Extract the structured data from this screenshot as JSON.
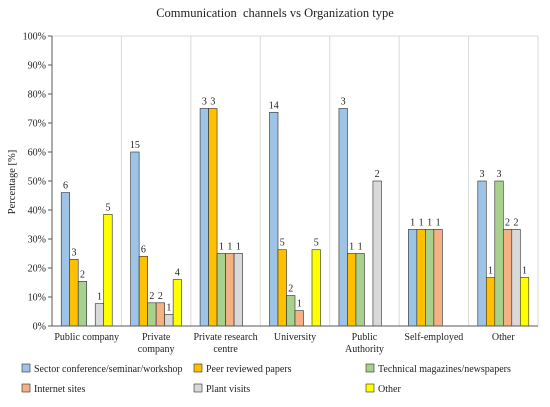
{
  "chart_data": {
    "type": "bar",
    "title": "Communication  channels vs Organization type",
    "ylabel": "Percentage [%]",
    "xlabel": "",
    "ylim": [
      0,
      100
    ],
    "y_ticks": [
      0,
      10,
      20,
      30,
      40,
      50,
      60,
      70,
      80,
      90,
      100
    ],
    "y_tick_suffix": "%",
    "grid": "vertical-separators",
    "legend_position": "bottom",
    "categories": [
      [
        "Public company"
      ],
      [
        "Private",
        "company"
      ],
      [
        "Private research",
        "centre"
      ],
      [
        "University"
      ],
      [
        "Public",
        "Authority"
      ],
      [
        "Self-employed"
      ],
      [
        "Other"
      ]
    ],
    "series": [
      {
        "name": "Sector conference/seminar/workshop",
        "color": "#9dc3e6",
        "values": [
          46,
          60,
          75,
          73.7,
          75,
          33.3,
          50
        ],
        "labels": [
          "6",
          "15",
          "3",
          "14",
          "3",
          "1",
          "3"
        ]
      },
      {
        "name": "Peer reviewed papers",
        "color": "#ffc000",
        "values": [
          23,
          24,
          75,
          26.3,
          25,
          33.3,
          16.7
        ],
        "labels": [
          "3",
          "6",
          "3",
          "5",
          "1",
          "1",
          "1"
        ]
      },
      {
        "name": "Technical magazines/newspapers",
        "color": "#a9d18e",
        "values": [
          15.4,
          8,
          25,
          10.5,
          25,
          33.3,
          50
        ],
        "labels": [
          "2",
          "2",
          "1",
          "2",
          "1",
          "1",
          "3"
        ]
      },
      {
        "name": "Internet sites",
        "color": "#f4b183",
        "values": [
          null,
          8,
          25,
          5.3,
          null,
          33.3,
          33.3
        ],
        "labels": [
          "",
          "2",
          "1",
          "1",
          "",
          "1",
          "2"
        ]
      },
      {
        "name": "Plant visits",
        "color": "#d9d9d9",
        "values": [
          7.7,
          4,
          25,
          null,
          50,
          null,
          33.3
        ],
        "labels": [
          "1",
          "1",
          "1",
          "",
          "2",
          "",
          "2"
        ]
      },
      {
        "name": "Other",
        "color": "#ffff00",
        "values": [
          38.5,
          16,
          null,
          26.3,
          null,
          null,
          16.7
        ],
        "labels": [
          "5",
          "4",
          "",
          "5",
          "",
          "",
          "1"
        ]
      }
    ]
  }
}
